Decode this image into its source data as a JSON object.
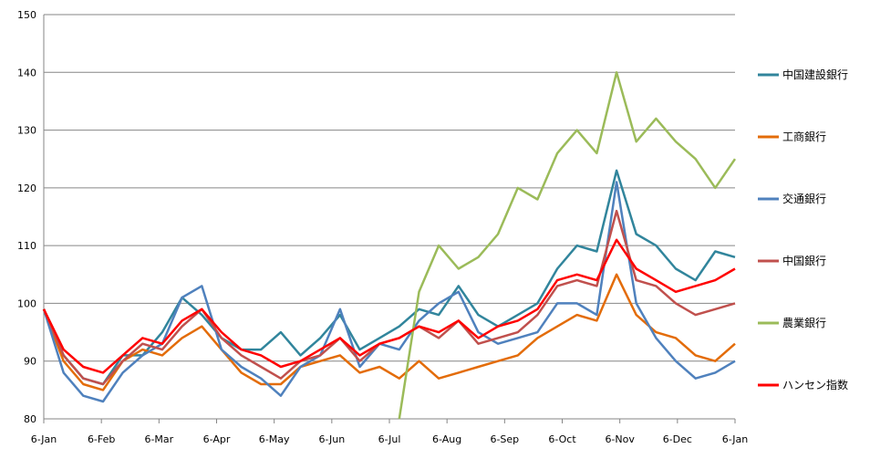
{
  "chart_data": {
    "type": "line",
    "title": "",
    "xlabel": "",
    "ylabel": "",
    "ylim": [
      80,
      150
    ],
    "yticks": [
      80,
      90,
      100,
      110,
      120,
      130,
      140,
      150
    ],
    "x_ticks": [
      "6-Jan",
      "6-Feb",
      "6-Mar",
      "6-Apr",
      "6-May",
      "6-Jun",
      "6-Jul",
      "6-Aug",
      "6-Sep",
      "6-Oct",
      "6-Nov",
      "6-Dec",
      "6-Jan"
    ],
    "grid": "horizontal",
    "legend_position": "right",
    "series": [
      {
        "name": "中国建設銀行",
        "color": "#31859c",
        "values": [
          99,
          91,
          87,
          86,
          91,
          91,
          95,
          101,
          98,
          94,
          92,
          92,
          95,
          91,
          94,
          98,
          92,
          94,
          96,
          99,
          98,
          103,
          98,
          96,
          98,
          100,
          106,
          110,
          109,
          123,
          112,
          110,
          106,
          104,
          109,
          108
        ]
      },
      {
        "name": "工商銀行",
        "color": "#e36c09",
        "values": [
          99,
          90,
          86,
          85,
          90,
          92,
          91,
          94,
          96,
          92,
          88,
          86,
          86,
          89,
          90,
          91,
          88,
          89,
          87,
          90,
          87,
          88,
          89,
          90,
          91,
          94,
          96,
          98,
          97,
          105,
          98,
          95,
          94,
          91,
          90,
          93
        ]
      },
      {
        "name": "交通銀行",
        "color": "#4f81bd",
        "values": [
          99,
          88,
          84,
          83,
          88,
          91,
          93,
          101,
          103,
          92,
          89,
          87,
          84,
          89,
          91,
          99,
          89,
          93,
          92,
          97,
          100,
          102,
          95,
          93,
          94,
          95,
          100,
          100,
          98,
          121,
          100,
          94,
          90,
          87,
          88,
          90
        ]
      },
      {
        "name": "中国銀行",
        "color": "#c0504d",
        "values": [
          99,
          91,
          87,
          86,
          90,
          93,
          92,
          96,
          99,
          94,
          91,
          89,
          87,
          90,
          91,
          94,
          90,
          93,
          94,
          96,
          94,
          97,
          93,
          94,
          95,
          98,
          103,
          104,
          103,
          116,
          104,
          103,
          100,
          98,
          99,
          100
        ]
      },
      {
        "name": "農業銀行",
        "color": "#9bbb59",
        "values": [
          null,
          null,
          null,
          null,
          null,
          null,
          null,
          null,
          null,
          null,
          null,
          null,
          null,
          null,
          null,
          null,
          null,
          null,
          80,
          102,
          110,
          106,
          108,
          112,
          120,
          118,
          126,
          130,
          126,
          140,
          128,
          132,
          128,
          125,
          120,
          125
        ]
      },
      {
        "name": "ハンセン指数",
        "color": "#ff0000",
        "values": [
          99,
          92,
          89,
          88,
          91,
          94,
          93,
          97,
          99,
          95,
          92,
          91,
          89,
          90,
          92,
          94,
          91,
          93,
          94,
          96,
          95,
          97,
          94,
          96,
          97,
          99,
          104,
          105,
          104,
          111,
          106,
          104,
          102,
          103,
          104,
          106
        ]
      }
    ]
  }
}
